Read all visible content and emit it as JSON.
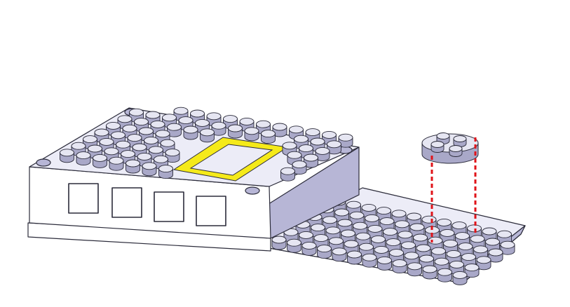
{
  "scene": {
    "description_free": true,
    "colors": {
      "background": "#ffffff",
      "part_top": "#ececf7",
      "part_side": "#b7b6d6",
      "part_front": "#ffffff",
      "part_outline": "#2b2b3a",
      "stud_top": "#e6e6f2",
      "stud_side": "#a9a8c8",
      "highlight_frame": "#f5ea1a",
      "guide_line": "#e0141a"
    },
    "icons": {
      "base_plate": "baseplate-icon",
      "housing_block": "housing-block-icon",
      "round_plate": "round-plate-icon"
    }
  }
}
